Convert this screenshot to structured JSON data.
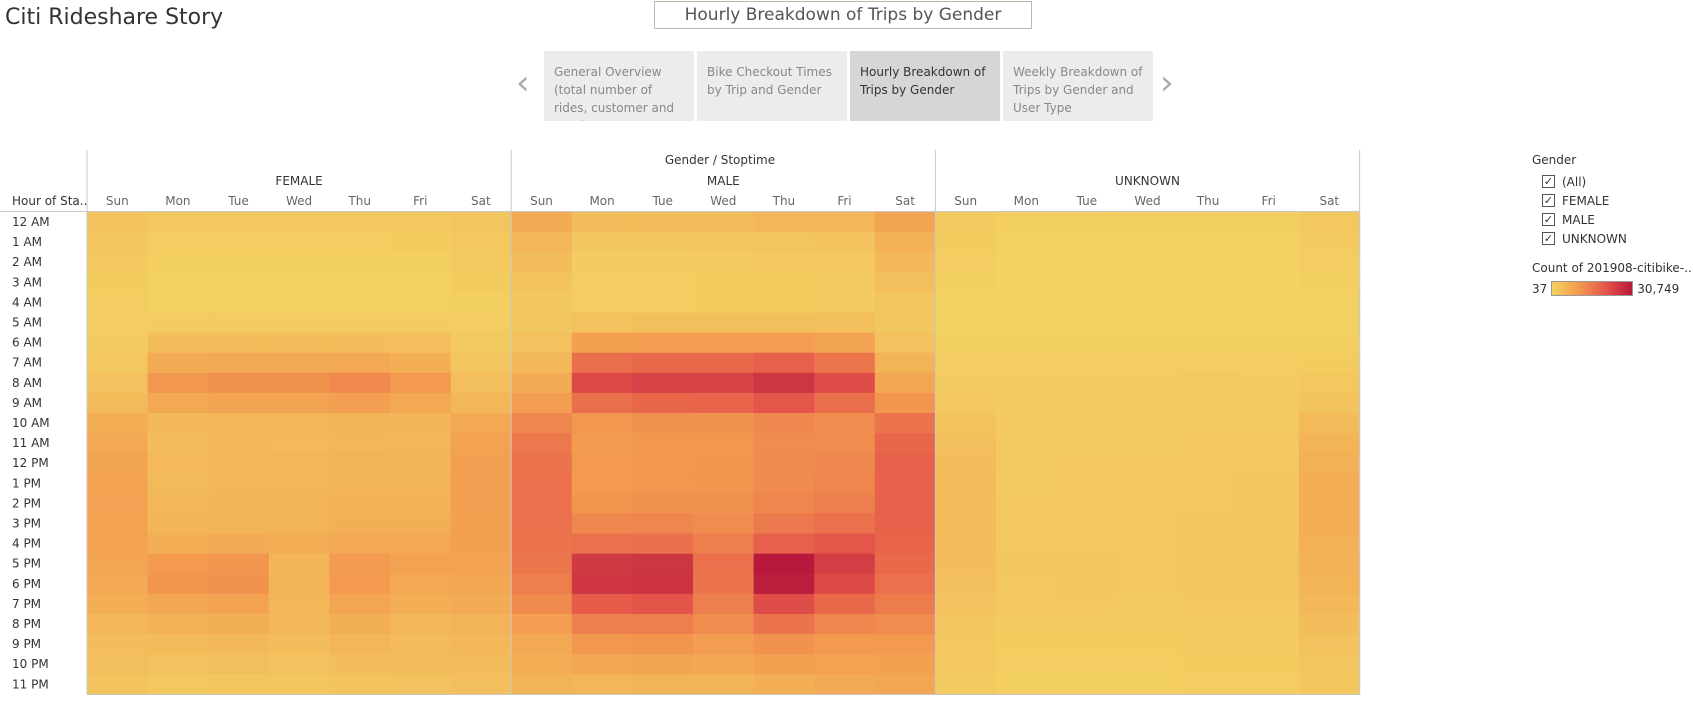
{
  "story": {
    "title": "Citi Rideshare Story",
    "sheet_title": "Hourly Breakdown of Trips by Gender",
    "nav_prev": "‹",
    "nav_next": "›",
    "points": [
      {
        "label": "General Overview (total number of rides, customer and gender",
        "active": false
      },
      {
        "label": "Bike Checkout Times by Trip and Gender",
        "active": false
      },
      {
        "label": "Hourly Breakdown of Trips by Gender",
        "active": true
      },
      {
        "label": "Weekly Breakdown of Trips by Gender and User Type",
        "active": false
      }
    ]
  },
  "legend": {
    "title": "Gender",
    "items": [
      "(All)",
      "FEMALE",
      "MALE",
      "UNKNOWN"
    ],
    "checkmark": "✓",
    "color_title": "Count of 201908-citibike-..",
    "min_label": "37",
    "max_label": "30,749",
    "colors": [
      "#f3d162",
      "#f39a4f",
      "#e5574a",
      "#b8183c"
    ]
  },
  "chart_data": {
    "type": "heatmap",
    "title": "Gender / Stoptime",
    "row_header": "Hour of Sta..",
    "groups": [
      "FEMALE",
      "MALE",
      "UNKNOWN"
    ],
    "days": [
      "Sun",
      "Mon",
      "Tue",
      "Wed",
      "Thu",
      "Fri",
      "Sat"
    ],
    "hours": [
      "12 AM",
      "1 AM",
      "2 AM",
      "3 AM",
      "4 AM",
      "5 AM",
      "6 AM",
      "7 AM",
      "8 AM",
      "9 AM",
      "10 AM",
      "11 AM",
      "12 PM",
      "1 PM",
      "2 PM",
      "3 PM",
      "4 PM",
      "5 PM",
      "6 PM",
      "7 PM",
      "8 PM",
      "9 PM",
      "10 PM",
      "11 PM"
    ],
    "value_range": [
      37,
      30749
    ],
    "values": {
      "FEMALE": [
        [
          2500,
          1500,
          1500,
          1500,
          1600,
          1700,
          2200
        ],
        [
          2000,
          700,
          700,
          700,
          800,
          900,
          1800
        ],
        [
          1500,
          400,
          400,
          400,
          500,
          500,
          1300
        ],
        [
          1000,
          300,
          300,
          300,
          300,
          300,
          900
        ],
        [
          700,
          300,
          300,
          300,
          300,
          300,
          600
        ],
        [
          700,
          1200,
          1200,
          1200,
          1200,
          1200,
          700
        ],
        [
          1200,
          3800,
          3800,
          3800,
          3800,
          3600,
          1300
        ],
        [
          1800,
          6900,
          7300,
          7300,
          7700,
          6600,
          2200
        ],
        [
          3000,
          10700,
          11500,
          11500,
          12700,
          10300,
          3500
        ],
        [
          4300,
          7700,
          8400,
          8500,
          9300,
          7700,
          5000
        ],
        [
          6500,
          4600,
          4900,
          4800,
          5400,
          5200,
          7700
        ],
        [
          7700,
          4200,
          4600,
          4500,
          5000,
          5000,
          8800
        ],
        [
          8500,
          4500,
          4900,
          4900,
          5400,
          5300,
          9300
        ],
        [
          8800,
          4400,
          4900,
          4900,
          5400,
          5400,
          9300
        ],
        [
          8900,
          4800,
          5200,
          5200,
          5800,
          5800,
          9300
        ],
        [
          8800,
          5300,
          5700,
          5700,
          6300,
          6400,
          9200
        ],
        [
          8700,
          6500,
          7000,
          6800,
          7700,
          7700,
          9000
        ],
        [
          8300,
          10300,
          11000,
          5300,
          10000,
          8800,
          8600
        ],
        [
          7700,
          10900,
          11500,
          5300,
          10300,
          7700,
          7900
        ],
        [
          6500,
          8100,
          8800,
          5100,
          8300,
          6500,
          7000
        ],
        [
          4800,
          5800,
          6300,
          4600,
          6300,
          5000,
          5600
        ],
        [
          3800,
          4200,
          4600,
          3800,
          4800,
          4200,
          4600
        ],
        [
          3300,
          3000,
          3300,
          3000,
          3800,
          3800,
          4200
        ],
        [
          2700,
          1800,
          2000,
          2000,
          2500,
          3000,
          3500
        ]
      ],
      "MALE": [
        [
          6900,
          3800,
          3800,
          3800,
          4600,
          5000,
          8400
        ],
        [
          5000,
          1900,
          1900,
          2100,
          2300,
          2700,
          6100
        ],
        [
          3800,
          1200,
          1200,
          1200,
          1500,
          1500,
          4600
        ],
        [
          2700,
          700,
          800,
          900,
          900,
          1100,
          3400
        ],
        [
          1900,
          700,
          800,
          900,
          900,
          1100,
          2300
        ],
        [
          1900,
          3000,
          3300,
          3300,
          3400,
          3400,
          1900
        ],
        [
          3000,
          9200,
          9600,
          9600,
          9600,
          8400,
          3000
        ],
        [
          4600,
          16900,
          17600,
          17600,
          19100,
          15700,
          5400
        ],
        [
          6900,
          22600,
          23800,
          23800,
          26100,
          22200,
          8100
        ],
        [
          9600,
          16900,
          18000,
          18400,
          20700,
          16900,
          11100
        ],
        [
          13400,
          10700,
          11500,
          11500,
          13000,
          12300,
          16100
        ],
        [
          15300,
          9900,
          10700,
          10700,
          12300,
          12300,
          18000
        ],
        [
          16100,
          10300,
          10700,
          11100,
          12600,
          13000,
          18800
        ],
        [
          16500,
          10300,
          10700,
          11100,
          12600,
          13400,
          18800
        ],
        [
          16500,
          11100,
          11500,
          11500,
          13400,
          14600,
          18800
        ],
        [
          16500,
          13000,
          13400,
          12300,
          15300,
          16500,
          18800
        ],
        [
          16100,
          16500,
          16900,
          14600,
          19100,
          20700,
          18400
        ],
        [
          15700,
          25300,
          26100,
          16500,
          30700,
          24500,
          17600
        ],
        [
          14600,
          25700,
          26500,
          16100,
          30000,
          22600,
          16500
        ],
        [
          12600,
          19900,
          21000,
          14600,
          22200,
          17600,
          14900
        ],
        [
          9600,
          14600,
          14600,
          12300,
          16100,
          13400,
          12300
        ],
        [
          7700,
          10700,
          11100,
          9600,
          11500,
          10300,
          10300
        ],
        [
          6500,
          8100,
          8400,
          8100,
          9200,
          8800,
          9200
        ],
        [
          5400,
          5000,
          5400,
          5400,
          6500,
          7300,
          8100
        ]
      ],
      "UNKNOWN": [
        [
          1300,
          400,
          400,
          400,
          500,
          600,
          1500
        ],
        [
          1000,
          200,
          200,
          200,
          300,
          300,
          1100
        ],
        [
          700,
          100,
          100,
          100,
          100,
          200,
          800
        ],
        [
          500,
          100,
          100,
          100,
          100,
          100,
          500
        ],
        [
          300,
          100,
          100,
          100,
          100,
          100,
          300
        ],
        [
          300,
          200,
          200,
          200,
          200,
          200,
          300
        ],
        [
          500,
          500,
          500,
          500,
          500,
          500,
          500
        ],
        [
          800,
          800,
          800,
          800,
          800,
          800,
          900
        ],
        [
          1200,
          1200,
          1200,
          1200,
          1300,
          1200,
          1500
        ],
        [
          1800,
          1300,
          1300,
          1300,
          1400,
          1400,
          2500
        ],
        [
          2500,
          1200,
          1300,
          1300,
          1400,
          1400,
          4200
        ],
        [
          3300,
          1300,
          1400,
          1400,
          1500,
          1600,
          5400
        ],
        [
          3800,
          1400,
          1500,
          1500,
          1700,
          1800,
          6100
        ],
        [
          4200,
          1400,
          1500,
          1500,
          1700,
          1900,
          6500
        ],
        [
          4200,
          1500,
          1600,
          1600,
          1800,
          2000,
          6500
        ],
        [
          4200,
          1600,
          1700,
          1600,
          1900,
          2100,
          6500
        ],
        [
          4200,
          1700,
          1800,
          1700,
          2000,
          2200,
          6100
        ],
        [
          3800,
          1900,
          2000,
          1700,
          2200,
          2300,
          5800
        ],
        [
          3500,
          1800,
          1900,
          1600,
          2100,
          2100,
          5400
        ],
        [
          3000,
          1500,
          1600,
          1400,
          1800,
          1800,
          4600
        ],
        [
          2300,
          1200,
          1300,
          1200,
          1400,
          1400,
          3800
        ],
        [
          1800,
          900,
          1000,
          900,
          1100,
          1100,
          3000
        ],
        [
          1500,
          700,
          800,
          700,
          900,
          900,
          2300
        ],
        [
          1300,
          500,
          600,
          600,
          700,
          800,
          2000
        ]
      ]
    }
  }
}
